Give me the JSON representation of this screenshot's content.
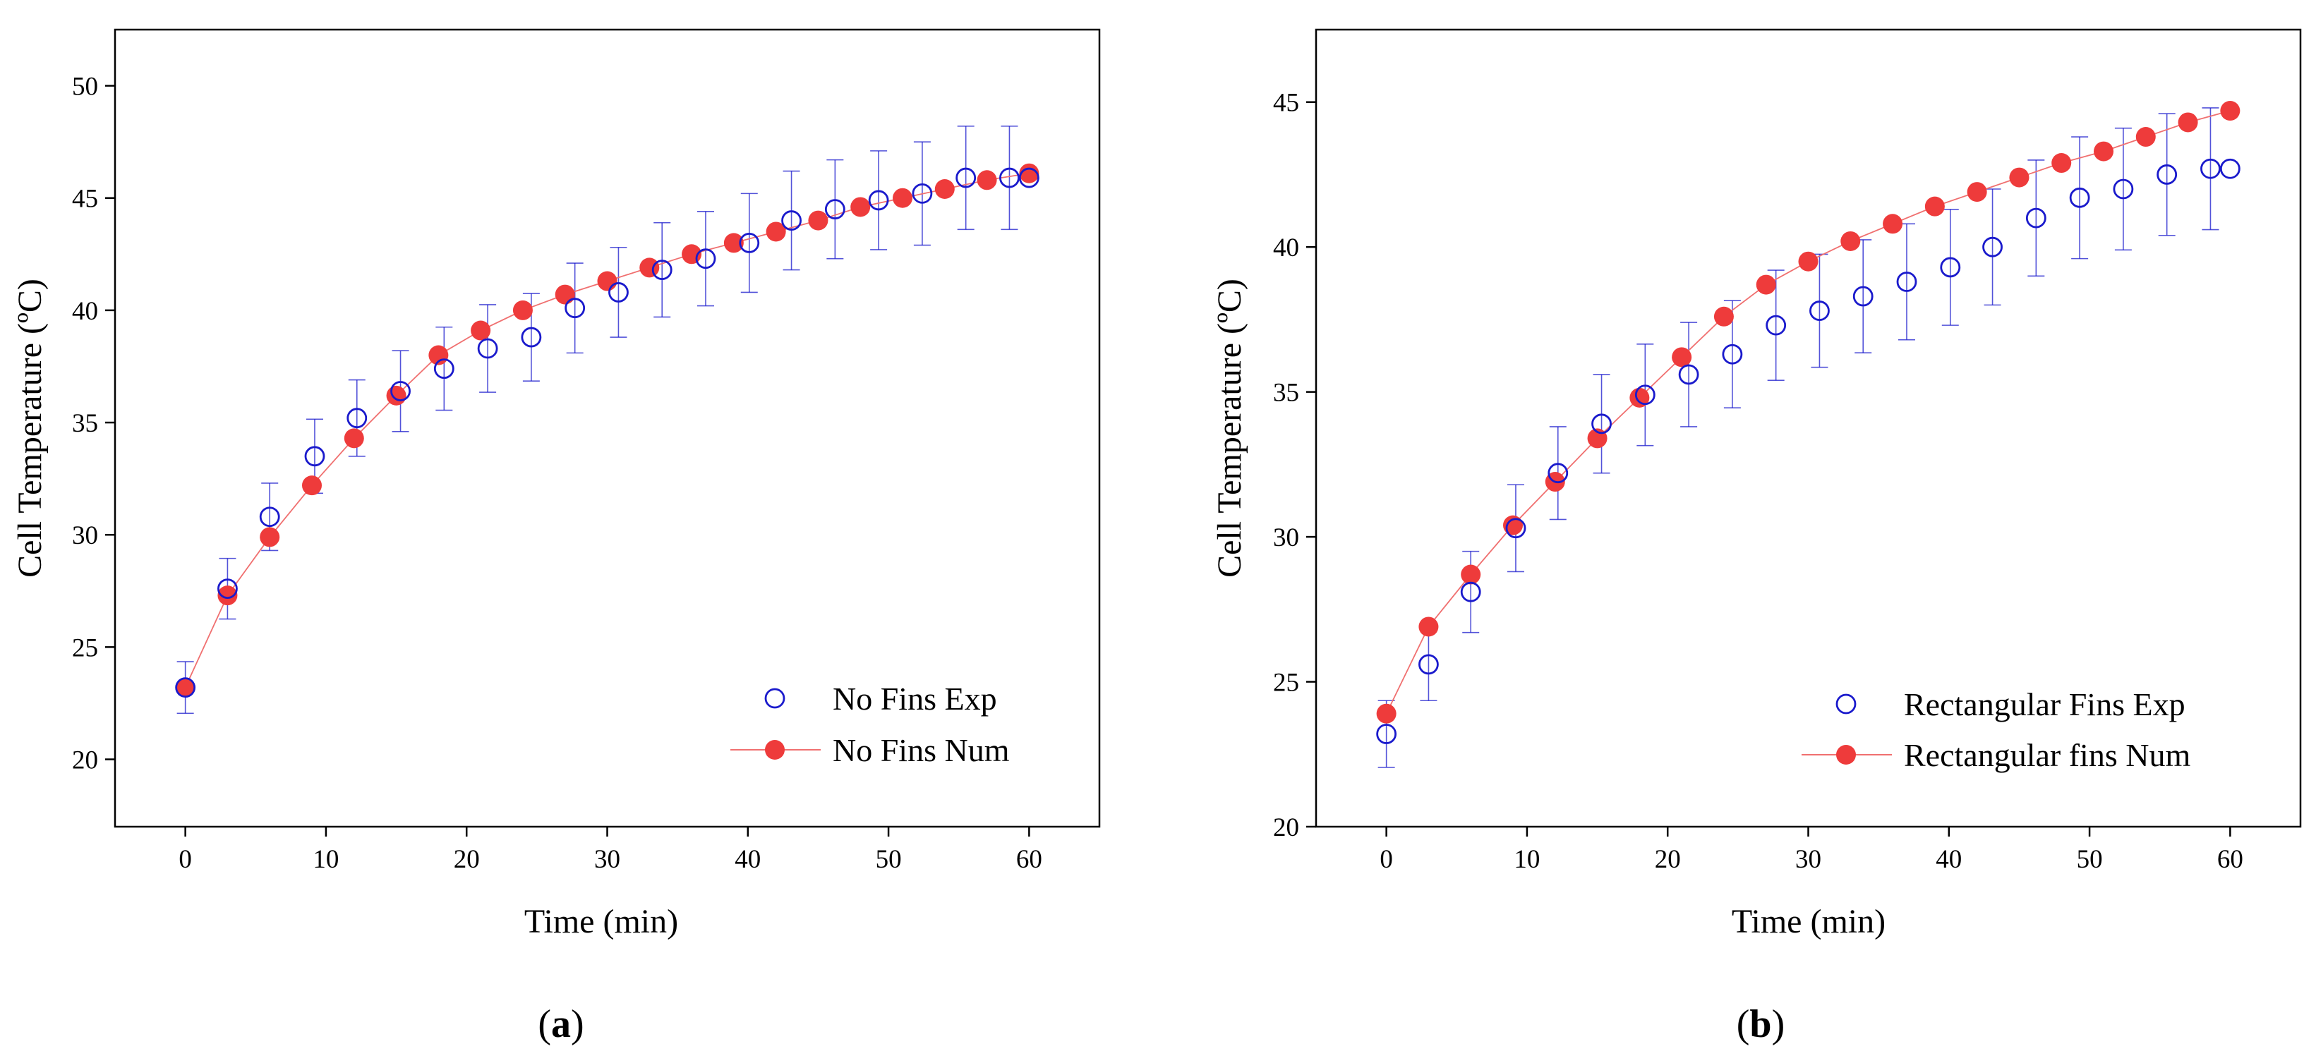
{
  "figure": {
    "panel_a_label": "(a)",
    "panel_a_letter": "a",
    "panel_b_label": "(b)",
    "panel_b_letter": "b"
  },
  "chart_data": [
    {
      "type": "scatter",
      "panel": "a",
      "title": "",
      "xlabel": "Time (min)",
      "ylabel": "Cell Temperature (ºC)",
      "xlim": [
        -5,
        65
      ],
      "ylim": [
        17,
        52.5
      ],
      "xticks": [
        0,
        10,
        20,
        30,
        40,
        50,
        60
      ],
      "yticks": [
        20,
        25,
        30,
        35,
        40,
        45,
        50
      ],
      "grid": false,
      "legend_position": "bottom-right",
      "colors": {
        "exp": "#1a1acc",
        "num": "#ee3b3b",
        "num_line": "#f07070"
      },
      "series": [
        {
          "name": "No Fins Exp",
          "marker": "open-circle",
          "x": [
            0,
            3,
            6,
            9.2,
            12.2,
            15.3,
            18.4,
            21.5,
            24.6,
            27.7,
            30.8,
            33.9,
            37,
            40.1,
            43.1,
            46.2,
            49.3,
            52.4,
            55.5,
            58.6,
            60
          ],
          "y": [
            23.2,
            27.6,
            30.8,
            33.5,
            35.2,
            36.4,
            37.4,
            38.3,
            38.8,
            40.1,
            40.8,
            41.8,
            42.3,
            43.0,
            44.0,
            44.5,
            44.9,
            45.2,
            45.9,
            45.9,
            45.9
          ],
          "error": [
            1.15,
            1.35,
            1.5,
            1.65,
            1.7,
            1.8,
            1.85,
            1.95,
            1.95,
            2.0,
            2.0,
            2.1,
            2.1,
            2.2,
            2.2,
            2.2,
            2.2,
            2.3,
            2.3,
            2.3,
            null
          ]
        },
        {
          "name": "No Fins Num",
          "marker": "filled-circle-line",
          "x": [
            0,
            3,
            6,
            9,
            12,
            15,
            18,
            21,
            24,
            27,
            30,
            33,
            36,
            39,
            42,
            45,
            48,
            51,
            54,
            57,
            60
          ],
          "y": [
            23.2,
            27.3,
            29.9,
            32.2,
            34.3,
            36.2,
            38.0,
            39.1,
            40.0,
            40.7,
            41.3,
            41.9,
            42.5,
            43.0,
            43.5,
            44.0,
            44.6,
            45.0,
            45.4,
            45.8,
            46.1
          ]
        }
      ]
    },
    {
      "type": "scatter",
      "panel": "b",
      "title": "",
      "xlabel": "Time (min)",
      "ylabel": "Cell Temperature (ºC)",
      "xlim": [
        -5,
        65
      ],
      "ylim": [
        20,
        47.5
      ],
      "xticks": [
        0,
        10,
        20,
        30,
        40,
        50,
        60
      ],
      "yticks": [
        20,
        25,
        30,
        35,
        40,
        45
      ],
      "grid": false,
      "legend_position": "bottom-right",
      "colors": {
        "exp": "#1a1acc",
        "num": "#ee3b3b",
        "num_line": "#f07070"
      },
      "series": [
        {
          "name": "Rectangular Fins Exp",
          "marker": "open-circle",
          "x": [
            0,
            3,
            6,
            9.2,
            12.2,
            15.3,
            18.4,
            21.5,
            24.6,
            27.7,
            30.8,
            33.9,
            37,
            40.1,
            43.1,
            46.2,
            49.3,
            52.4,
            55.5,
            58.6,
            60
          ],
          "y": [
            23.2,
            25.6,
            28.1,
            30.3,
            32.2,
            33.9,
            34.9,
            35.6,
            36.3,
            37.3,
            37.8,
            38.3,
            38.8,
            39.3,
            40.0,
            41.0,
            41.7,
            42.0,
            42.5,
            42.7,
            42.7
          ],
          "error": [
            1.15,
            1.25,
            1.4,
            1.5,
            1.6,
            1.7,
            1.75,
            1.8,
            1.85,
            1.9,
            1.95,
            1.95,
            2.0,
            2.0,
            2.0,
            2.0,
            2.1,
            2.1,
            2.1,
            2.1,
            null
          ]
        },
        {
          "name": "Rectangular fins Num",
          "marker": "filled-circle-line",
          "x": [
            0,
            3,
            6,
            9,
            12,
            15,
            18,
            21,
            24,
            27,
            30,
            33,
            36,
            39,
            42,
            45,
            48,
            51,
            54,
            57,
            60
          ],
          "y": [
            23.9,
            26.9,
            28.7,
            30.4,
            31.9,
            33.4,
            34.8,
            36.2,
            37.6,
            38.7,
            39.5,
            40.2,
            40.8,
            41.4,
            41.9,
            42.4,
            42.9,
            43.3,
            43.8,
            44.3,
            44.7
          ]
        }
      ]
    }
  ]
}
